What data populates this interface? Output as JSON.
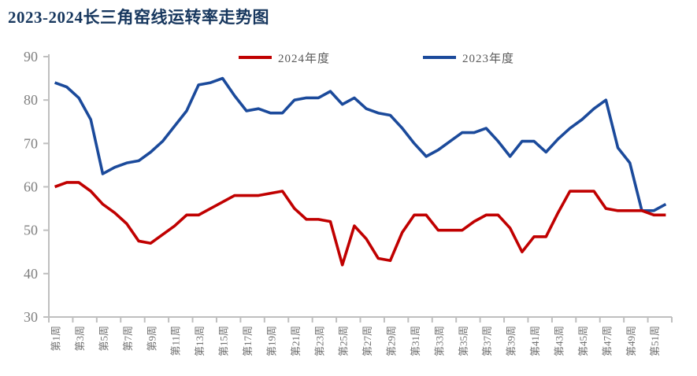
{
  "page": {
    "background": "#ffffff"
  },
  "chart_data": {
    "type": "line",
    "title": "2023-2024长三角窑线运转率走势图",
    "title_color": "#17375E",
    "xlabel": "",
    "ylabel": "",
    "ylim": [
      30,
      90
    ],
    "yticks": [
      30,
      40,
      50,
      60,
      70,
      80,
      90
    ],
    "grid": false,
    "legend_position": "top-center",
    "axis_color": "#BFBFBF",
    "tick_label_color": "#7F7F7F",
    "x_tick_label_color": "#737373",
    "x_labels": [
      "第1周",
      "第3周",
      "第5周",
      "第7周",
      "第9周",
      "第11周",
      "第13周",
      "第15周",
      "第17周",
      "第19周",
      "第21周",
      "第23周",
      "第25周",
      "第27周",
      "第29周",
      "第31周",
      "第33周",
      "第35周",
      "第37周",
      "第39周",
      "第41周",
      "第43周",
      "第45周",
      "第47周",
      "第49周",
      "第51周"
    ],
    "n_weeks": 52,
    "series": [
      {
        "name": "2024年度",
        "color": "#C00000",
        "values": [
          60,
          61,
          61,
          59,
          56,
          54,
          51.5,
          47.5,
          47,
          49,
          51,
          53.5,
          53.5,
          55,
          56.5,
          58,
          58,
          58,
          58.5,
          59,
          55,
          52.5,
          52.5,
          52,
          42,
          51,
          48,
          43.5,
          43,
          49.5,
          53.5,
          53.5,
          50,
          50,
          50,
          52,
          53.5,
          53.5,
          50.5,
          45,
          48.5,
          48.5,
          54,
          59,
          59,
          59,
          55,
          54.5,
          54.5,
          54.5,
          53.5,
          53.5
        ]
      },
      {
        "name": "2023年度",
        "color": "#1B4A9B",
        "values": [
          84,
          83,
          80.5,
          75.5,
          63,
          64.5,
          65.5,
          66,
          68,
          70.5,
          74,
          77.5,
          83.5,
          84,
          85,
          81,
          77.5,
          78,
          77,
          77,
          80,
          80.5,
          80.5,
          82,
          79,
          80.5,
          78,
          77,
          76.5,
          73.5,
          70,
          67,
          68.5,
          70.5,
          72.5,
          72.5,
          73.5,
          70.5,
          67,
          70.5,
          70.5,
          68,
          71,
          73.5,
          75.5,
          78,
          80,
          69,
          65.5,
          54.5,
          54.5,
          56
        ]
      }
    ]
  }
}
